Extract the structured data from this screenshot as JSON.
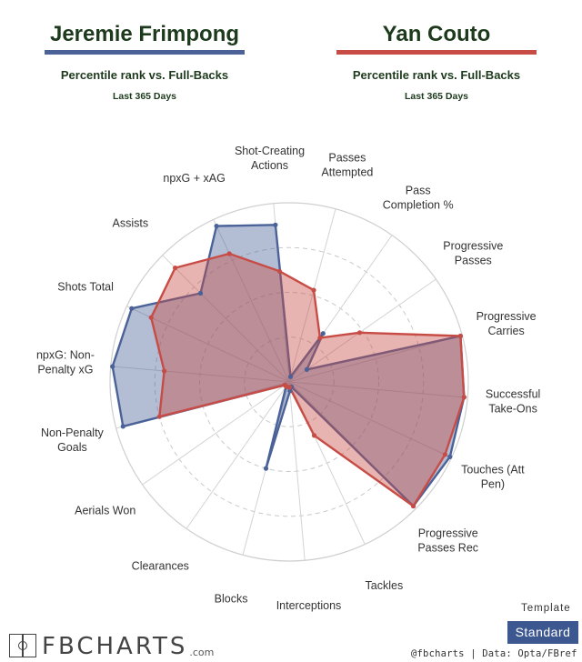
{
  "players": [
    {
      "name": "Jeremie Frimpong",
      "subtitle": "Percentile rank vs. Full-Backs",
      "period": "Last 365 Days",
      "color": "#4a6298"
    },
    {
      "name": "Yan Couto",
      "subtitle": "Percentile rank vs. Full-Backs",
      "period": "Last 365 Days",
      "color": "#c84c46"
    }
  ],
  "template": {
    "label": "Template",
    "selected": "Standard"
  },
  "branding": {
    "logo": "FBCHARTS",
    "logo_suffix": ".com",
    "credit": "@fbcharts | Data: Opta/FBref"
  },
  "chart_data": {
    "type": "radar",
    "rlim": [
      0,
      100
    ],
    "grid": true,
    "categories": [
      "Shot-Creating Actions",
      "Passes Attempted",
      "Pass Completion %",
      "Progressive Passes",
      "Progressive Carries",
      "Successful Take-Ons",
      "Touches (Att Pen)",
      "Progressive Passes Rec",
      "Tackles",
      "Interceptions",
      "Blocks",
      "Clearances",
      "Aerials Won",
      "Non-Penalty Goals",
      "npxG: Non-Penalty xG",
      "Shots Total",
      "Assists",
      "npxG + xAG"
    ],
    "series": [
      {
        "name": "Jeremie Frimpong",
        "values": [
          88,
          3,
          33,
          12,
          99,
          98,
          99,
          98,
          3,
          5,
          50,
          3,
          3,
          96,
          99,
          97,
          70,
          96
        ],
        "color": "#4a6298"
      },
      {
        "name": "Yan Couto",
        "values": [
          62,
          53,
          30,
          48,
          99,
          98,
          96,
          98,
          33,
          3,
          3,
          3,
          3,
          75,
          70,
          85,
          90,
          79
        ],
        "color": "#c84c46"
      }
    ]
  }
}
